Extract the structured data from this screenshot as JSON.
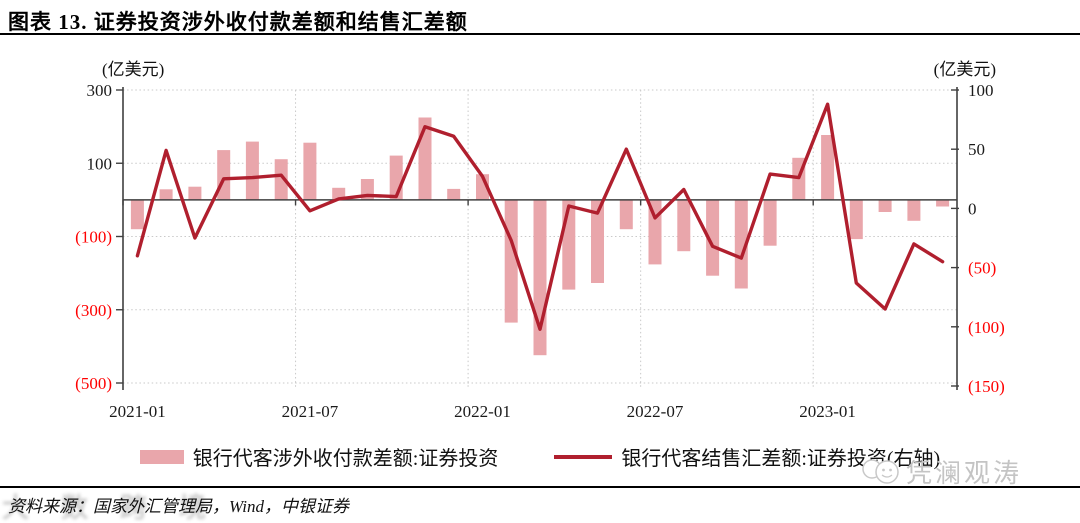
{
  "figure": {
    "title": "图表 13. 证券投资涉外收付款差额和结售汇差额",
    "source": "资料来源：国家外汇管理局，Wind，中银证券",
    "watermark_left": "大数跨境",
    "watermark_right": "凭澜观涛"
  },
  "legend": [
    {
      "label": "银行代客涉外收付款差额:证券投资",
      "type": "bar"
    },
    {
      "label": "银行代客结售汇差额:证券投资(右轴)",
      "type": "line"
    }
  ],
  "colors": {
    "bar": "#e9a6ab",
    "line": "#b01f2e",
    "negative_label": "#ff0000",
    "text": "#1a1a1a",
    "grid": "#c9c9c9",
    "axis": "#404040",
    "watermark": "#c4c4c4"
  },
  "chart_data": {
    "type": "bar+line combo, dual axis, monthly",
    "x": [
      "2021-01",
      "2021-02",
      "2021-03",
      "2021-04",
      "2021-05",
      "2021-06",
      "2021-07",
      "2021-08",
      "2021-09",
      "2021-10",
      "2021-11",
      "2021-12",
      "2022-01",
      "2022-02",
      "2022-03",
      "2022-04",
      "2022-05",
      "2022-06",
      "2022-07",
      "2022-08",
      "2022-09",
      "2022-10",
      "2022-11",
      "2022-12",
      "2023-01",
      "2023-02",
      "2023-03",
      "2023-04",
      "2023-05"
    ],
    "x_tick_labels": [
      "2021-01",
      "2021-07",
      "2022-01",
      "2022-07",
      "2023-01"
    ],
    "series": [
      {
        "name": "银行代客涉外收付款差额:证券投资",
        "type": "bar",
        "axis": "left",
        "values": [
          -80,
          29,
          36,
          136,
          159,
          111,
          156,
          33,
          57,
          121,
          225,
          30,
          70,
          -335,
          -424,
          -245,
          -227,
          -80,
          -176,
          -140,
          -207,
          -242,
          -125,
          115,
          177,
          -107,
          -33,
          -57,
          -18
        ]
      },
      {
        "name": "银行代客结售汇差额:证券投资(右轴)",
        "type": "line",
        "axis": "right",
        "values": [
          -40,
          49,
          -25,
          25,
          26,
          28,
          -2,
          8,
          11,
          10,
          69,
          61,
          27,
          -27,
          -102,
          2,
          -4,
          50,
          -8,
          16,
          -32,
          -42,
          29,
          26,
          88,
          -63,
          -85,
          -30,
          -45
        ]
      }
    ],
    "left_axis": {
      "title": "(亿美元)",
      "min": -500,
      "max": 300,
      "ticks": [
        300,
        100,
        -100,
        -300,
        -500
      ]
    },
    "right_axis": {
      "title": "(亿美元)",
      "min": -150,
      "max": 100,
      "ticks": [
        100,
        50,
        0,
        -50,
        -100,
        -150
      ]
    },
    "grid": "dotted horizontal at left-axis ticks, dotted vertical at labeled x ticks",
    "negative_tick_format": "(abs) in red parentheses",
    "legend_position": "bottom center"
  }
}
